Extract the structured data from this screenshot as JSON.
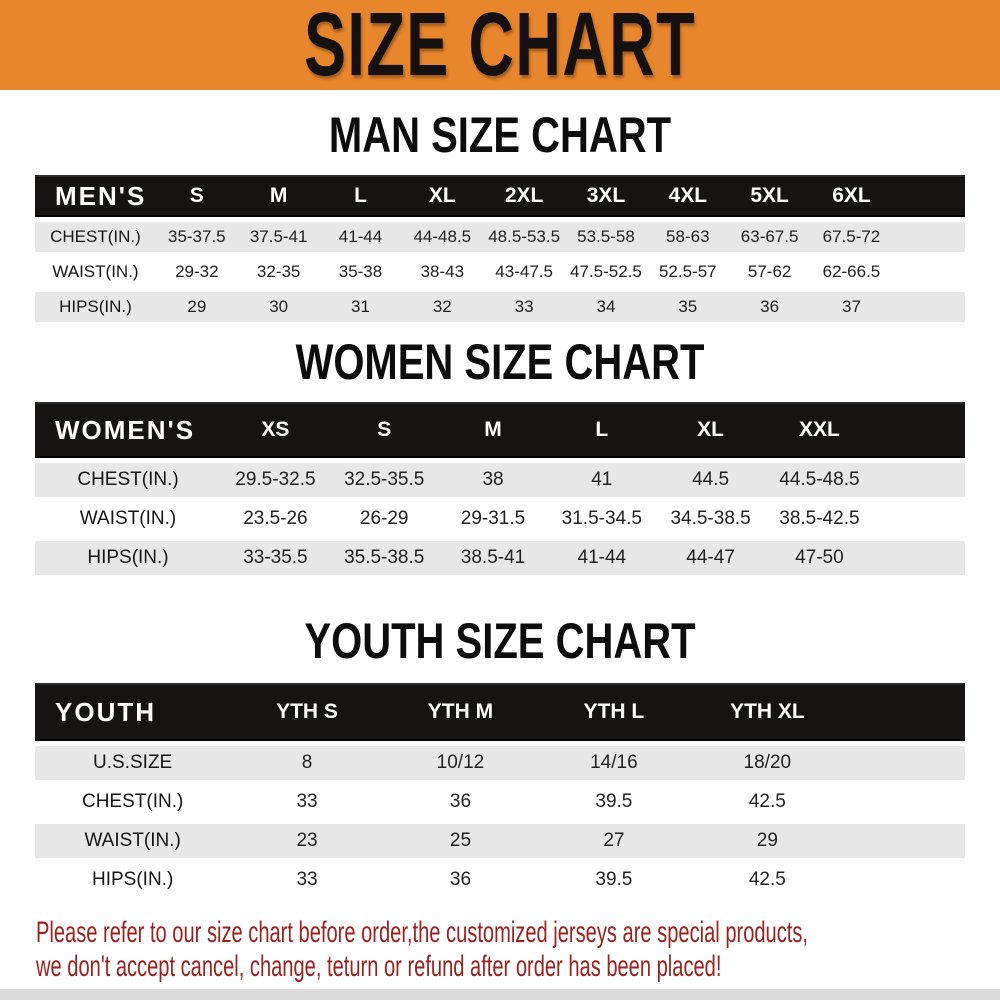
{
  "banner": {
    "title": "SIZE CHART"
  },
  "sections": [
    {
      "key": "men",
      "heading": "MAN SIZE CHART",
      "header": [
        "MEN'S",
        "S",
        "M",
        "L",
        "XL",
        "2XL",
        "3XL",
        "4XL",
        "5XL",
        "6XL"
      ],
      "rows": [
        [
          "CHEST(IN.)",
          "35-37.5",
          "37.5-41",
          "41-44",
          "44-48.5",
          "48.5-53.5",
          "53.5-58",
          "58-63",
          "63-67.5",
          "67.5-72"
        ],
        [
          "WAIST(IN.)",
          "29-32",
          "32-35",
          "35-38",
          "38-43",
          "43-47.5",
          "47.5-52.5",
          "52.5-57",
          "57-62",
          "62-66.5"
        ],
        [
          "HIPS(IN.)",
          "29",
          "30",
          "31",
          "32",
          "33",
          "34",
          "35",
          "36",
          "37"
        ]
      ]
    },
    {
      "key": "women",
      "heading": "WOMEN SIZE CHART",
      "header": [
        "WOMEN'S",
        "XS",
        "S",
        "M",
        "L",
        "XL",
        "XXL"
      ],
      "rows": [
        [
          "CHEST(IN.)",
          "29.5-32.5",
          "32.5-35.5",
          "38",
          "41",
          "44.5",
          "44.5-48.5"
        ],
        [
          "WAIST(IN.)",
          "23.5-26",
          "26-29",
          "29-31.5",
          "31.5-34.5",
          "34.5-38.5",
          "38.5-42.5"
        ],
        [
          "HIPS(IN.)",
          "33-35.5",
          "35.5-38.5",
          "38.5-41",
          "41-44",
          "44-47",
          "47-50"
        ]
      ]
    },
    {
      "key": "youth",
      "heading": "YOUTH SIZE CHART",
      "header": [
        "YOUTH",
        "YTH S",
        "YTH M",
        "YTH L",
        "YTH XL"
      ],
      "rows": [
        [
          "U.S.SIZE",
          "8",
          "10/12",
          "14/16",
          "18/20"
        ],
        [
          "CHEST(IN.)",
          "33",
          "36",
          "39.5",
          "42.5"
        ],
        [
          "WAIST(IN.)",
          "23",
          "25",
          "27",
          "29"
        ],
        [
          "HIPS(IN.)",
          "33",
          "36",
          "39.5",
          "42.5"
        ]
      ]
    }
  ],
  "footer_note": {
    "line1": "Please refer to our size chart before order,the customized jerseys are special products,",
    "line2": "we don't accept cancel, change, teturn or refund after order has been placed!"
  },
  "colors": {
    "banner_bg": "#E8862D",
    "header_bg": "#151413",
    "row_alt_bg": "#E7E7E7",
    "note_red": "#9C2220"
  }
}
